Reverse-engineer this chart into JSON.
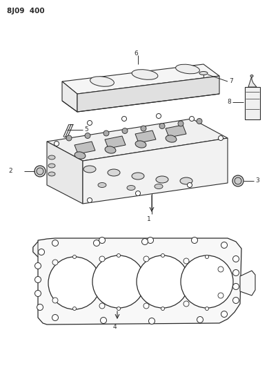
{
  "title": "8J09  400",
  "bg_color": "#ffffff",
  "line_color": "#2a2a2a",
  "fig_width": 4.03,
  "fig_height": 5.33,
  "dpi": 100
}
